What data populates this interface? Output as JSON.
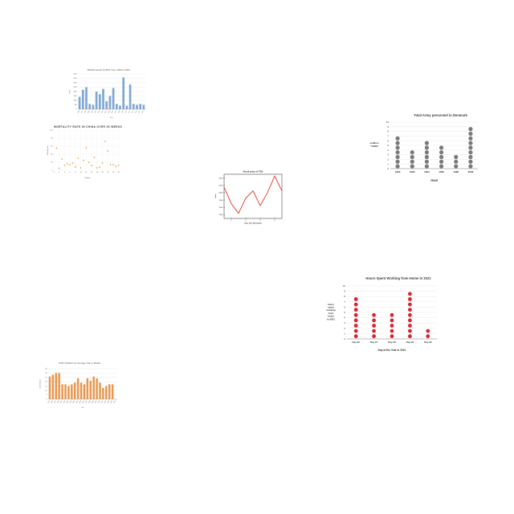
{
  "colors": {
    "blue": "#7fa7d1",
    "orange": "#f0a24a",
    "bar_orange": "#e8974f",
    "gray": "#7a7a7a",
    "red": "#d9232e",
    "line_red": "#e0362a",
    "grid": "#e3e3e3",
    "text": "#555555"
  },
  "chart_data": [
    {
      "id": "births",
      "type": "bar",
      "title": "Officials issued by Birth Year: 1990 to 2023",
      "xlabel": "Year",
      "ylabel": "Births",
      "categories": [
        "1996",
        "1997",
        "1998",
        "1999",
        "2000",
        "2001",
        "2002",
        "2003",
        "2004",
        "2005",
        "2006",
        "2007",
        "2008",
        "2009",
        "2010",
        "2011",
        "2012",
        "2013",
        "2014",
        "2015"
      ],
      "values": [
        1400,
        2200,
        2500,
        600,
        500,
        2000,
        1700,
        2300,
        900,
        1500,
        2400,
        600,
        400,
        3600,
        400,
        2800,
        600,
        500,
        600,
        500
      ],
      "ylim": [
        0,
        4000
      ],
      "yticks": [
        0,
        500,
        1000,
        1500,
        2000,
        2500,
        3000,
        3500,
        4000
      ],
      "grid": true,
      "legend": "none"
    },
    {
      "id": "mortality",
      "type": "scatter",
      "title": "MORTALITY RATE IN CHINA OVER 25 WEEKS",
      "xlabel": "Number",
      "ylabel": "Mortality rate",
      "x": [
        1,
        2,
        3,
        4,
        5,
        6,
        7,
        8,
        9,
        10,
        11,
        12,
        13,
        14,
        15,
        16,
        17,
        18,
        19,
        20,
        21,
        22,
        23,
        24
      ],
      "y": [
        55,
        5,
        28,
        12,
        16,
        14,
        18,
        8,
        30,
        6,
        25,
        56,
        20,
        12,
        32,
        6,
        8,
        18,
        72,
        48,
        14,
        14,
        10,
        12
      ],
      "xlim": [
        0,
        25
      ],
      "ylim": [
        0,
        100
      ],
      "xticks": [
        0,
        2,
        4,
        6,
        8,
        10,
        12,
        14,
        16,
        18,
        20,
        22,
        24
      ],
      "yticks": [
        0,
        20,
        40,
        60,
        80,
        100
      ],
      "grid": true,
      "legend": "none"
    },
    {
      "id": "stock",
      "type": "line",
      "title": "Stock price of TSS",
      "xlabel": "Days after 2013-05-20",
      "ylabel": "Price",
      "x": [
        1,
        2,
        3,
        4,
        5,
        6,
        7,
        8,
        9
      ],
      "y": [
        355,
        310,
        284,
        325,
        345,
        305,
        340,
        385,
        345
      ],
      "xlim": [
        1,
        9
      ],
      "ylim": [
        270,
        390
      ],
      "xticks": [
        2,
        4,
        6,
        8
      ],
      "yticks": [
        280,
        300,
        320,
        340,
        360,
        380
      ],
      "grid": false,
      "legend": "none"
    },
    {
      "id": "army",
      "type": "dot",
      "title": "Total Army personnel in Denmark",
      "xlabel": "YEAR",
      "ylabel": "soldiers *10000",
      "categories": [
        "1980",
        "1983",
        "1994",
        "1995",
        "1998",
        "2008"
      ],
      "values": [
        7,
        4,
        6,
        5,
        3,
        9
      ],
      "ylim": [
        0,
        10
      ],
      "yticks": [
        0,
        1,
        2,
        3,
        4,
        5,
        6,
        7,
        8,
        9,
        10
      ],
      "grid": true,
      "legend": "none"
    },
    {
      "id": "wfh",
      "type": "dot",
      "title": "Hours Spent Working from Home in 2021",
      "xlabel": "Day of the Year in 2021",
      "ylabel": "hours spent working from home in 2021",
      "categories": [
        "Day 26",
        "Day 27",
        "Day 28",
        "Day 29",
        "Day 30"
      ],
      "values": [
        8,
        5,
        5,
        9,
        2
      ],
      "ylim": [
        0,
        10
      ],
      "yticks": [
        0,
        1,
        2,
        3,
        4,
        5,
        6,
        7,
        8,
        9,
        10
      ],
      "grid": true,
      "legend": "none"
    },
    {
      "id": "cod",
      "type": "bar",
      "title": "COD Violation by Average Year in Media",
      "xlabel": "Year",
      "ylabel": "COD Violation",
      "categories": [
        "1995",
        "1996",
        "1997",
        "1998",
        "1999",
        "2000",
        "2001",
        "2002",
        "2003",
        "2004",
        "2005",
        "2006",
        "2007",
        "2008",
        "2009",
        "2010",
        "2011",
        "2012",
        "2013",
        "2014",
        "2015",
        "2016"
      ],
      "values": [
        26,
        28,
        30,
        30,
        17,
        17,
        15,
        17,
        19,
        24,
        19,
        17,
        24,
        21,
        26,
        24,
        19,
        13,
        15,
        17,
        17,
        0
      ],
      "ylim": [
        0,
        35
      ],
      "yticks": [
        0,
        5,
        10,
        15,
        20,
        25,
        30,
        35
      ],
      "grid": true,
      "legend": "none"
    }
  ]
}
